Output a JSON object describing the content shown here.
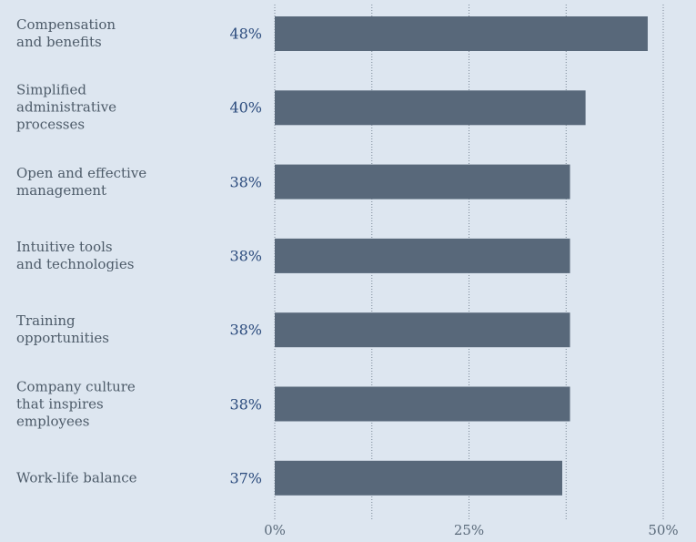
{
  "chart_data": {
    "type": "barh",
    "categories": [
      "Compensation\nand benefits",
      "Simplified\nadministrative\nprocesses",
      "Open and effective\nmanagement",
      "Intuitive tools\nand technologies",
      "Training\nopportunities",
      "Company culture\nthat inspires\nemployees",
      "Work-life balance"
    ],
    "values": [
      48,
      40,
      38,
      38,
      38,
      38,
      37
    ],
    "value_labels": [
      "48%",
      "40%",
      "38%",
      "38%",
      "38%",
      "38%",
      "37%"
    ],
    "color": "#58687a",
    "xlim": [
      0,
      50
    ],
    "xticks": [
      {
        "value": 0,
        "label": "0%"
      },
      {
        "value": 25,
        "label": "25%"
      },
      {
        "value": 50,
        "label": "50%"
      }
    ],
    "xminorticks": [
      12.5,
      37.5
    ],
    "grid": true
  }
}
